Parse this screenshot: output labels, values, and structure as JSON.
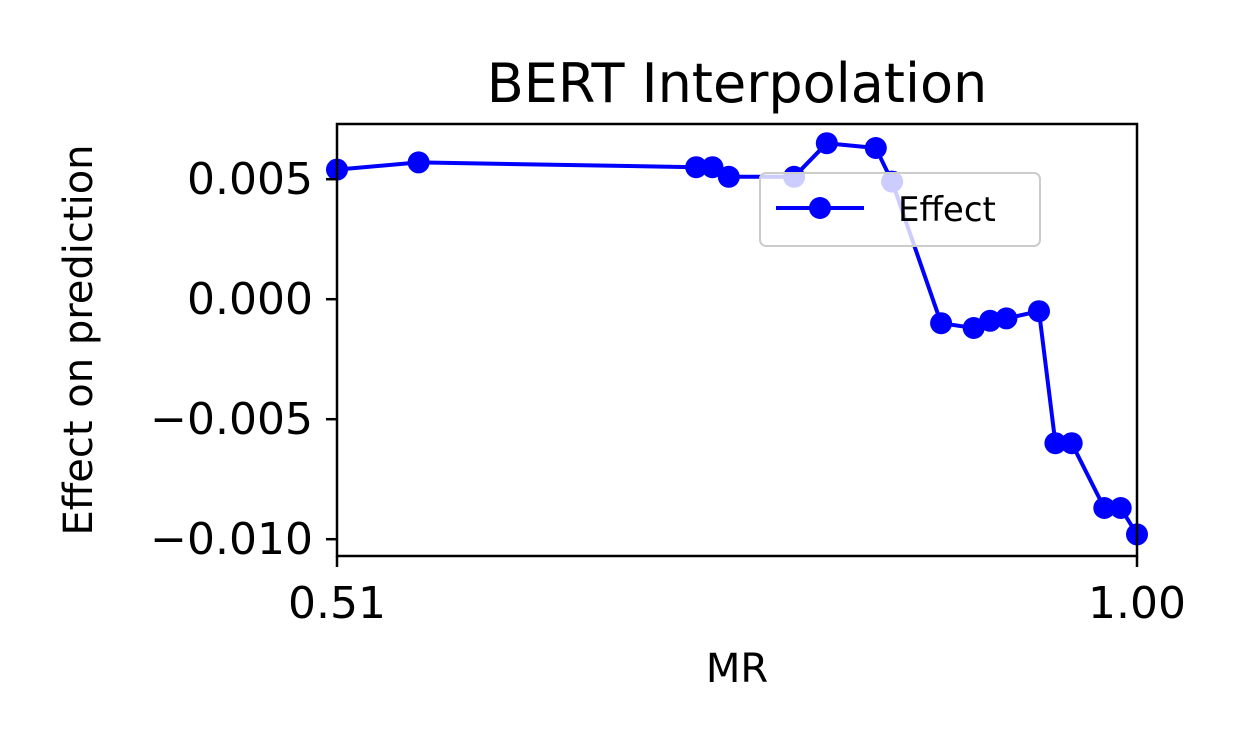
{
  "chart_data": {
    "type": "line",
    "title": "BERT Interpolation",
    "xlabel": "MR",
    "ylabel": "Effect on prediction",
    "xlim": [
      0.51,
      1.0
    ],
    "ylim": [
      -0.0107,
      0.0073
    ],
    "x_ticks": [
      {
        "value": 0.51,
        "label": "0.51"
      },
      {
        "value": 1.0,
        "label": "1.00"
      }
    ],
    "y_ticks": [
      {
        "value": 0.005,
        "label": "0.005"
      },
      {
        "value": 0.0,
        "label": "0.000"
      },
      {
        "value": -0.005,
        "label": "−0.005"
      },
      {
        "value": -0.01,
        "label": "−0.010"
      }
    ],
    "grid": false,
    "legend": {
      "position": "upper-right",
      "entries": [
        "Effect"
      ]
    },
    "series": [
      {
        "name": "Effect",
        "color": "#0000ff",
        "x": [
          0.51,
          0.56,
          0.73,
          0.74,
          0.75,
          0.79,
          0.81,
          0.84,
          0.85,
          0.88,
          0.9,
          0.91,
          0.92,
          0.94,
          0.95,
          0.96,
          0.98,
          0.99,
          1.0
        ],
        "values": [
          0.0054,
          0.0057,
          0.0055,
          0.0055,
          0.0051,
          0.0051,
          0.0065,
          0.0063,
          0.0049,
          -0.001,
          -0.0012,
          -0.0009,
          -0.0008,
          -0.0005,
          -0.006,
          -0.006,
          -0.0087,
          -0.0087,
          -0.0098
        ]
      }
    ]
  }
}
